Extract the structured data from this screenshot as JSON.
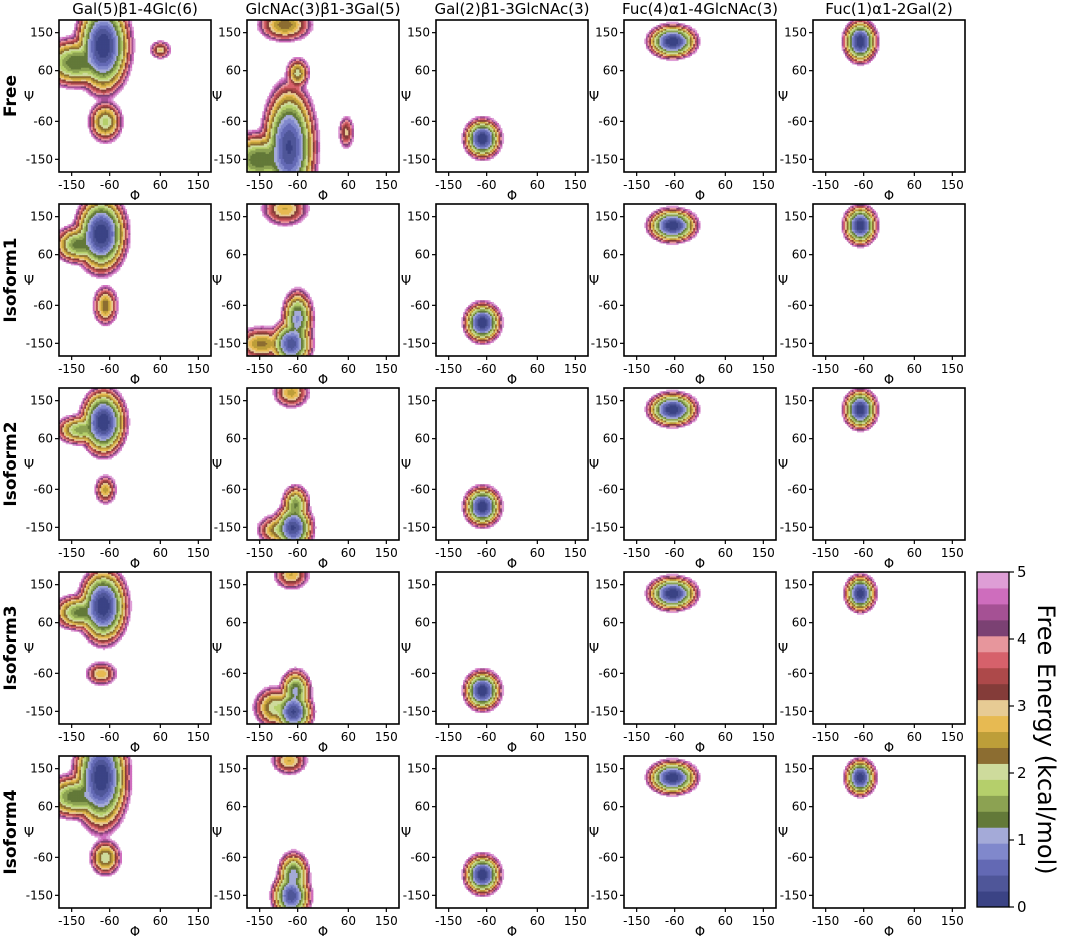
{
  "chart_data": {
    "type": "heatmap",
    "description_units": "Free Energy (kcal/mol)",
    "columns": [
      "Gal(5)β1-4Glc(6)",
      "GlcNAc(3)β1-3Gal(5)",
      "Gal(2)β1-3GlcNAc(3)",
      "Fuc(4)α1-4GlcNAc(3)",
      "Fuc(1)α1-2Gal(2)"
    ],
    "rows": [
      "Free",
      "Isoform1",
      "Isoform2",
      "Isoform3",
      "Isoform4"
    ],
    "xlabel": "Φ",
    "ylabel": "Ψ",
    "xlim": [
      -180,
      180
    ],
    "ylim": [
      -180,
      180
    ],
    "xticks": [
      -150,
      -60,
      60,
      150
    ],
    "yticks": [
      150,
      60,
      -60,
      -150
    ],
    "colorbar": {
      "label": "Free Energy (kcal/mol)",
      "range": [
        0,
        5
      ],
      "ticks": [
        "0",
        "1",
        "2",
        "3",
        "4",
        "5"
      ],
      "bands": [
        "#3b4385",
        "#4f5699",
        "#6369b4",
        "#8088cc",
        "#a4aad8",
        "#637939",
        "#8ca252",
        "#b5cf6b",
        "#cedb9c",
        "#8c6d31",
        "#bd9e39",
        "#e7ba52",
        "#e7cb94",
        "#843c39",
        "#ad494a",
        "#d6616b",
        "#e7969c",
        "#7b4173",
        "#a55194",
        "#ce6dbd",
        "#de9ed6",
        "#ffffff"
      ]
    },
    "panels": [
      [
        {
          "minima": [
            {
              "phi": -75,
              "psi": 120,
              "sx": 18,
              "sy": 32,
              "e": 0.0
            },
            {
              "phi": -140,
              "psi": 80,
              "sx": 26,
              "sy": 18,
              "e": 1.2
            },
            {
              "phi": -70,
              "psi": -60,
              "sx": 13,
              "sy": 16,
              "e": 1.8
            },
            {
              "phi": 60,
              "psi": 110,
              "sx": 9,
              "sy": 8,
              "e": 2.8
            }
          ]
        },
        {
          "minima": [
            {
              "phi": -80,
              "psi": -120,
              "sx": 18,
              "sy": 42,
              "e": 0.2
            },
            {
              "phi": -150,
              "psi": -150,
              "sx": 28,
              "sy": 20,
              "e": 1.2
            },
            {
              "phi": -60,
              "psi": 55,
              "sx": 9,
              "sy": 12,
              "e": 2.0
            },
            {
              "phi": -90,
              "psi": 170,
              "sx": 22,
              "sy": 14,
              "e": 2.2
            },
            {
              "phi": 55,
              "psi": -85,
              "sx": 7,
              "sy": 15,
              "e": 3.0
            }
          ]
        },
        {
          "minima": [
            {
              "phi": -70,
              "psi": -100,
              "sx": 12,
              "sy": 13,
              "e": 0.0
            }
          ]
        },
        {
          "minima": [
            {
              "phi": -65,
              "psi": 130,
              "sx": 16,
              "sy": 11,
              "e": 0.0
            }
          ]
        },
        {
          "minima": [
            {
              "phi": -68,
              "psi": 130,
              "sx": 11,
              "sy": 14,
              "e": 0.0
            }
          ]
        }
      ],
      [
        {
          "minima": [
            {
              "phi": -80,
              "psi": 110,
              "sx": 17,
              "sy": 26,
              "e": 0.0
            },
            {
              "phi": -135,
              "psi": 85,
              "sx": 18,
              "sy": 14,
              "e": 1.3
            },
            {
              "phi": -70,
              "psi": -60,
              "sx": 10,
              "sy": 16,
              "e": 2.2
            }
          ]
        },
        {
          "minima": [
            {
              "phi": -75,
              "psi": -150,
              "sx": 14,
              "sy": 16,
              "e": 0.3
            },
            {
              "phi": -60,
              "psi": -90,
              "sx": 11,
              "sy": 20,
              "e": 0.9
            },
            {
              "phi": -145,
              "psi": -150,
              "sx": 22,
              "sy": 14,
              "e": 2.3
            },
            {
              "phi": -90,
              "psi": 170,
              "sx": 20,
              "sy": 15,
              "e": 2.6
            }
          ]
        },
        {
          "minima": [
            {
              "phi": -70,
              "psi": -100,
              "sx": 12,
              "sy": 13,
              "e": 0.0
            }
          ]
        },
        {
          "minima": [
            {
              "phi": -65,
              "psi": 130,
              "sx": 16,
              "sy": 11,
              "e": 0.0
            }
          ]
        },
        {
          "minima": [
            {
              "phi": -68,
              "psi": 130,
              "sx": 11,
              "sy": 13,
              "e": 0.0
            }
          ]
        }
      ],
      [
        {
          "minima": [
            {
              "phi": -75,
              "psi": 100,
              "sx": 15,
              "sy": 22,
              "e": 0.0
            },
            {
              "phi": -130,
              "psi": 82,
              "sx": 18,
              "sy": 11,
              "e": 1.5
            },
            {
              "phi": -70,
              "psi": -60,
              "sx": 9,
              "sy": 12,
              "e": 2.5
            }
          ]
        },
        {
          "minima": [
            {
              "phi": -70,
              "psi": -150,
              "sx": 13,
              "sy": 16,
              "e": 0.2
            },
            {
              "phi": -65,
              "psi": -95,
              "sx": 10,
              "sy": 14,
              "e": 1.4
            },
            {
              "phi": -100,
              "psi": -155,
              "sx": 18,
              "sy": 12,
              "e": 1.9
            },
            {
              "phi": -75,
              "psi": 170,
              "sx": 15,
              "sy": 13,
              "e": 2.5
            }
          ]
        },
        {
          "minima": [
            {
              "phi": -70,
              "psi": -100,
              "sx": 12,
              "sy": 13,
              "e": 0.0
            }
          ]
        },
        {
          "minima": [
            {
              "phi": -65,
              "psi": 130,
              "sx": 16,
              "sy": 11,
              "e": 0.0
            }
          ]
        },
        {
          "minima": [
            {
              "phi": -68,
              "psi": 130,
              "sx": 11,
              "sy": 13,
              "e": 0.0
            }
          ]
        }
      ],
      [
        {
          "minima": [
            {
              "phi": -75,
              "psi": 100,
              "sx": 16,
              "sy": 25,
              "e": 0.0
            },
            {
              "phi": -130,
              "psi": 85,
              "sx": 20,
              "sy": 13,
              "e": 1.3
            },
            {
              "phi": -80,
              "psi": -60,
              "sx": 13,
              "sy": 10,
              "e": 2.6
            }
          ]
        },
        {
          "minima": [
            {
              "phi": -70,
              "psi": -150,
              "sx": 13,
              "sy": 15,
              "e": 0.2
            },
            {
              "phi": -65,
              "psi": -100,
              "sx": 11,
              "sy": 15,
              "e": 1.1
            },
            {
              "phi": -115,
              "psi": -140,
              "sx": 16,
              "sy": 16,
              "e": 1.9
            },
            {
              "phi": -75,
              "psi": 175,
              "sx": 15,
              "sy": 13,
              "e": 2.6
            }
          ]
        },
        {
          "minima": [
            {
              "phi": -70,
              "psi": -100,
              "sx": 12,
              "sy": 13,
              "e": 0.0
            }
          ]
        },
        {
          "minima": [
            {
              "phi": -65,
              "psi": 130,
              "sx": 16,
              "sy": 11,
              "e": 0.0
            }
          ]
        },
        {
          "minima": [
            {
              "phi": -68,
              "psi": 130,
              "sx": 10,
              "sy": 12,
              "e": 0.0
            }
          ]
        }
      ],
      [
        {
          "minima": [
            {
              "phi": -80,
              "psi": 130,
              "sx": 18,
              "sy": 35,
              "e": 0.0
            },
            {
              "phi": -140,
              "psi": 85,
              "sx": 25,
              "sy": 16,
              "e": 1.2
            },
            {
              "phi": -70,
              "psi": -60,
              "sx": 12,
              "sy": 14,
              "e": 1.9
            }
          ]
        },
        {
          "minima": [
            {
              "phi": -75,
              "psi": -150,
              "sx": 13,
              "sy": 16,
              "e": 0.3
            },
            {
              "phi": -70,
              "psi": -100,
              "sx": 11,
              "sy": 16,
              "e": 1.0
            },
            {
              "phi": -80,
              "psi": 170,
              "sx": 15,
              "sy": 12,
              "e": 2.6
            }
          ]
        },
        {
          "minima": [
            {
              "phi": -70,
              "psi": -100,
              "sx": 12,
              "sy": 13,
              "e": 0.0
            }
          ]
        },
        {
          "minima": [
            {
              "phi": -65,
              "psi": 130,
              "sx": 16,
              "sy": 11,
              "e": 0.0
            }
          ]
        },
        {
          "minima": [
            {
              "phi": -68,
              "psi": 130,
              "sx": 10,
              "sy": 12,
              "e": 0.0
            }
          ]
        }
      ]
    ]
  }
}
